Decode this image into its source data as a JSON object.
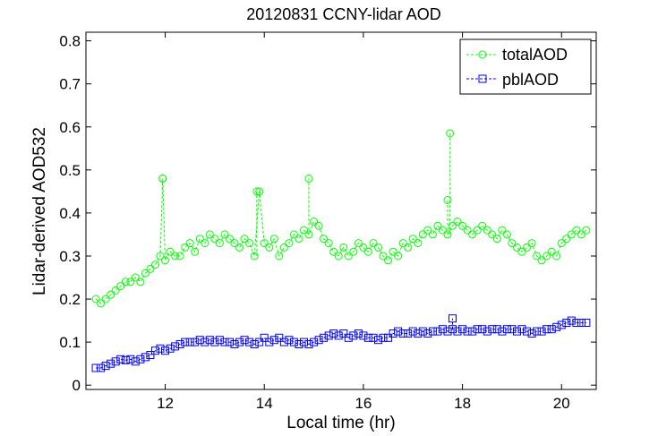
{
  "chart_data": {
    "type": "line",
    "title": "20120831 CCNY-lidar AOD",
    "xlabel": "Local time (hr)",
    "ylabel": "Lidar-derived AOD532",
    "xlim": [
      10.4,
      20.7
    ],
    "ylim": [
      -0.01,
      0.82
    ],
    "xticks": [
      12,
      14,
      16,
      18,
      20
    ],
    "yticks": [
      0,
      0.1,
      0.2,
      0.3,
      0.4,
      0.5,
      0.6,
      0.7,
      0.8
    ],
    "xtick_labels": [
      "12",
      "14",
      "16",
      "18",
      "20"
    ],
    "ytick_labels": [
      "0",
      "0.1",
      "0.2",
      "0.3",
      "0.4",
      "0.5",
      "0.6",
      "0.7",
      "0.8"
    ],
    "legend_position": "top-right",
    "series": [
      {
        "name": "totalAOD",
        "color": "#00ff00",
        "marker": "circle",
        "x": [
          10.6,
          10.7,
          10.8,
          10.9,
          11.0,
          11.1,
          11.2,
          11.3,
          11.4,
          11.5,
          11.6,
          11.7,
          11.8,
          11.9,
          11.95,
          12.0,
          12.1,
          12.2,
          12.3,
          12.4,
          12.5,
          12.6,
          12.7,
          12.8,
          12.9,
          13.0,
          13.1,
          13.2,
          13.3,
          13.4,
          13.5,
          13.6,
          13.7,
          13.8,
          13.9,
          14.0,
          14.1,
          14.2,
          14.3,
          14.4,
          14.5,
          14.6,
          14.7,
          14.8,
          14.9,
          15.0,
          15.1,
          15.2,
          15.3,
          15.4,
          15.5,
          15.6,
          15.7,
          15.8,
          15.9,
          16.0,
          16.1,
          16.2,
          16.3,
          16.4,
          16.5,
          16.6,
          16.7,
          16.8,
          16.9,
          17.0,
          17.1,
          17.2,
          17.3,
          17.4,
          17.5,
          17.6,
          17.7,
          17.8,
          17.9,
          18.0,
          18.1,
          18.2,
          18.3,
          18.4,
          18.5,
          18.6,
          18.7,
          18.8,
          18.9,
          19.0,
          19.1,
          19.2,
          19.3,
          19.4,
          19.5,
          19.6,
          19.7,
          19.8,
          19.9,
          20.0,
          20.1,
          20.2,
          20.3,
          20.4,
          20.5
        ],
        "y": [
          0.2,
          0.19,
          0.2,
          0.21,
          0.22,
          0.23,
          0.24,
          0.24,
          0.25,
          0.24,
          0.26,
          0.27,
          0.28,
          0.3,
          0.48,
          0.29,
          0.31,
          0.3,
          0.3,
          0.32,
          0.33,
          0.31,
          0.34,
          0.33,
          0.35,
          0.34,
          0.33,
          0.35,
          0.34,
          0.33,
          0.32,
          0.34,
          0.33,
          0.3,
          0.45,
          0.33,
          0.32,
          0.34,
          0.3,
          0.32,
          0.33,
          0.35,
          0.34,
          0.36,
          0.35,
          0.38,
          0.37,
          0.34,
          0.33,
          0.31,
          0.3,
          0.32,
          0.3,
          0.31,
          0.33,
          0.32,
          0.31,
          0.33,
          0.32,
          0.3,
          0.29,
          0.31,
          0.3,
          0.33,
          0.32,
          0.34,
          0.33,
          0.35,
          0.36,
          0.35,
          0.37,
          0.36,
          0.35,
          0.37,
          0.38,
          0.37,
          0.36,
          0.35,
          0.36,
          0.37,
          0.36,
          0.35,
          0.34,
          0.36,
          0.35,
          0.33,
          0.32,
          0.31,
          0.32,
          0.33,
          0.3,
          0.29,
          0.3,
          0.31,
          0.3,
          0.33,
          0.34,
          0.35,
          0.36,
          0.35,
          0.36
        ],
        "spikes": [
          {
            "x": 11.95,
            "y": 0.48
          },
          {
            "x": 13.85,
            "y": 0.45
          },
          {
            "x": 14.9,
            "y": 0.48
          },
          {
            "x": 17.75,
            "y": 0.585
          },
          {
            "x": 17.7,
            "y": 0.43
          }
        ]
      },
      {
        "name": "pblAOD",
        "color": "#0000ff",
        "marker": "square",
        "x": [
          10.6,
          10.7,
          10.8,
          10.9,
          11.0,
          11.1,
          11.2,
          11.3,
          11.4,
          11.5,
          11.6,
          11.7,
          11.8,
          11.9,
          12.0,
          12.1,
          12.2,
          12.3,
          12.4,
          12.5,
          12.6,
          12.7,
          12.8,
          12.9,
          13.0,
          13.1,
          13.2,
          13.3,
          13.4,
          13.5,
          13.6,
          13.7,
          13.8,
          13.9,
          14.0,
          14.1,
          14.2,
          14.3,
          14.4,
          14.5,
          14.6,
          14.7,
          14.8,
          14.9,
          15.0,
          15.1,
          15.2,
          15.3,
          15.4,
          15.5,
          15.6,
          15.7,
          15.8,
          15.9,
          16.0,
          16.1,
          16.2,
          16.3,
          16.4,
          16.5,
          16.6,
          16.7,
          16.8,
          16.9,
          17.0,
          17.1,
          17.2,
          17.3,
          17.4,
          17.5,
          17.6,
          17.7,
          17.8,
          17.9,
          18.0,
          18.1,
          18.2,
          18.3,
          18.4,
          18.5,
          18.6,
          18.7,
          18.8,
          18.9,
          19.0,
          19.1,
          19.2,
          19.3,
          19.4,
          19.5,
          19.6,
          19.7,
          19.8,
          19.9,
          20.0,
          20.1,
          20.2,
          20.3,
          20.4,
          20.5
        ],
        "y": [
          0.04,
          0.04,
          0.045,
          0.05,
          0.055,
          0.06,
          0.058,
          0.06,
          0.055,
          0.06,
          0.065,
          0.07,
          0.08,
          0.085,
          0.08,
          0.085,
          0.09,
          0.095,
          0.1,
          0.1,
          0.1,
          0.105,
          0.1,
          0.105,
          0.1,
          0.105,
          0.1,
          0.1,
          0.095,
          0.1,
          0.105,
          0.1,
          0.095,
          0.1,
          0.11,
          0.1,
          0.105,
          0.11,
          0.1,
          0.105,
          0.1,
          0.095,
          0.1,
          0.095,
          0.1,
          0.105,
          0.11,
          0.115,
          0.12,
          0.115,
          0.12,
          0.11,
          0.115,
          0.12,
          0.115,
          0.11,
          0.11,
          0.105,
          0.11,
          0.11,
          0.12,
          0.125,
          0.12,
          0.12,
          0.125,
          0.12,
          0.125,
          0.12,
          0.125,
          0.125,
          0.13,
          0.125,
          0.13,
          0.125,
          0.13,
          0.125,
          0.125,
          0.13,
          0.13,
          0.125,
          0.13,
          0.13,
          0.125,
          0.13,
          0.13,
          0.125,
          0.13,
          0.125,
          0.12,
          0.125,
          0.125,
          0.13,
          0.13,
          0.135,
          0.14,
          0.145,
          0.15,
          0.145,
          0.145,
          0.145
        ],
        "spikes": [
          {
            "x": 17.8,
            "y": 0.155
          }
        ]
      }
    ]
  }
}
